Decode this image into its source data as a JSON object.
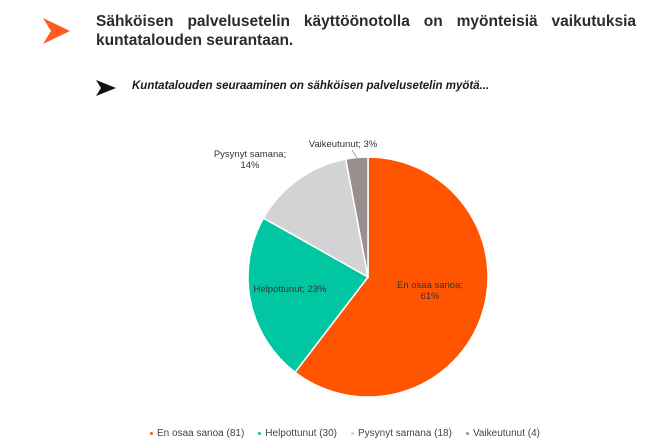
{
  "slide": {
    "title": "Sähköisen palvelusetelin käyttöönotolla on myönteisiä vaikutuksia kuntatalouden seurantaan.",
    "subtitle": "Kuntatalouden seuraaminen on sähköisen palvelusetelin myötä...",
    "accent_color": "#FF5A1F",
    "title_icon": "orange-chevron-icon",
    "subtitle_icon": "black-chevron-icon"
  },
  "chart_data": {
    "type": "pie",
    "title": "",
    "slices": [
      {
        "label": "En osaa sanoa",
        "percent": 61,
        "count": 81,
        "color": "#FF5500",
        "data_label_line1": "En osaa sanoa;",
        "data_label_line2": "61%",
        "legend": "En osaa sanoa (81)"
      },
      {
        "label": "Helpottunut",
        "percent": 23,
        "count": 30,
        "color": "#00C6A2",
        "data_label_line1": "Helpottunut; 23%",
        "data_label_line2": "",
        "legend": "Helpottunut (30)"
      },
      {
        "label": "Pysynyt samana",
        "percent": 14,
        "count": 18,
        "color": "#D3D3D5",
        "data_label_line1": "Pysynyt samana;",
        "data_label_line2": "14%",
        "legend": "Pysynyt samana (18)"
      },
      {
        "label": "Vaikeutunut",
        "percent": 3,
        "count": 4,
        "color": "#9A8F8E",
        "data_label_line1": "Vaikeutunut; 3%",
        "data_label_line2": "",
        "legend": "Vaikeutunut (4)"
      }
    ],
    "start_angle_deg": 0,
    "direction": "clockwise",
    "legend_position": "bottom"
  }
}
